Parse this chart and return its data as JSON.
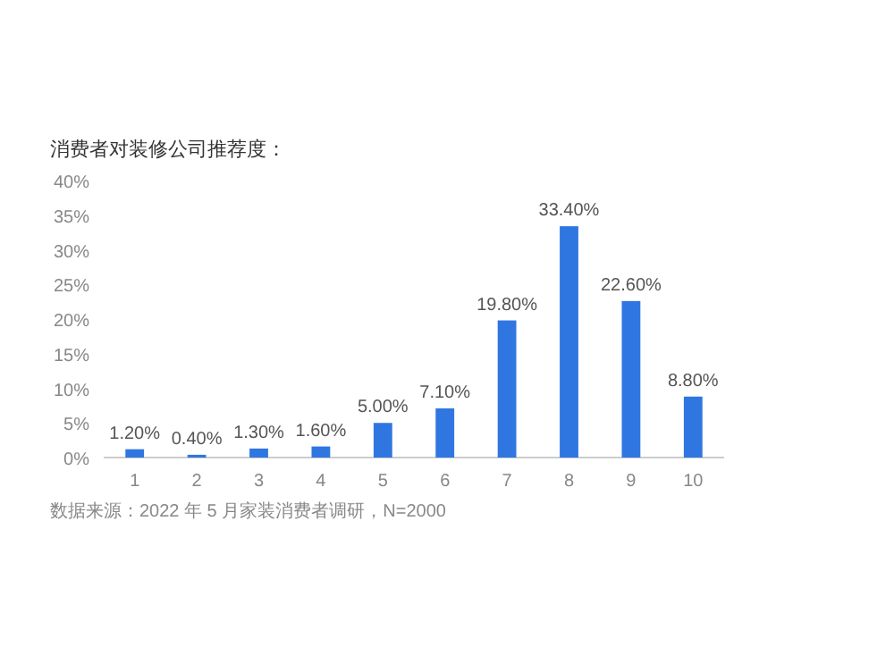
{
  "chart_data": {
    "type": "bar",
    "title": "消费者对装修公司推荐度：",
    "categories": [
      "1",
      "2",
      "3",
      "4",
      "5",
      "6",
      "7",
      "8",
      "9",
      "10"
    ],
    "values": [
      1.2,
      0.4,
      1.3,
      1.6,
      5.0,
      7.1,
      19.8,
      33.4,
      22.6,
      8.8
    ],
    "value_labels": [
      "1.20%",
      "0.40%",
      "1.30%",
      "1.60%",
      "5.00%",
      "7.10%",
      "19.80%",
      "33.40%",
      "22.60%",
      "8.80%"
    ],
    "color": "#2f76e1",
    "ylim": [
      0,
      40
    ],
    "yticks": [
      {
        "value": 0,
        "label": "0%"
      },
      {
        "value": 5,
        "label": "5%"
      },
      {
        "value": 10,
        "label": "10%"
      },
      {
        "value": 15,
        "label": "15%"
      },
      {
        "value": 20,
        "label": "20%"
      },
      {
        "value": 25,
        "label": "25%"
      },
      {
        "value": 30,
        "label": "30%"
      },
      {
        "value": 35,
        "label": "35%"
      },
      {
        "value": 40,
        "label": "40%"
      }
    ],
    "annotations": [
      "数据来源：2022 年 5 月家装消费者调研，N=2000"
    ]
  }
}
